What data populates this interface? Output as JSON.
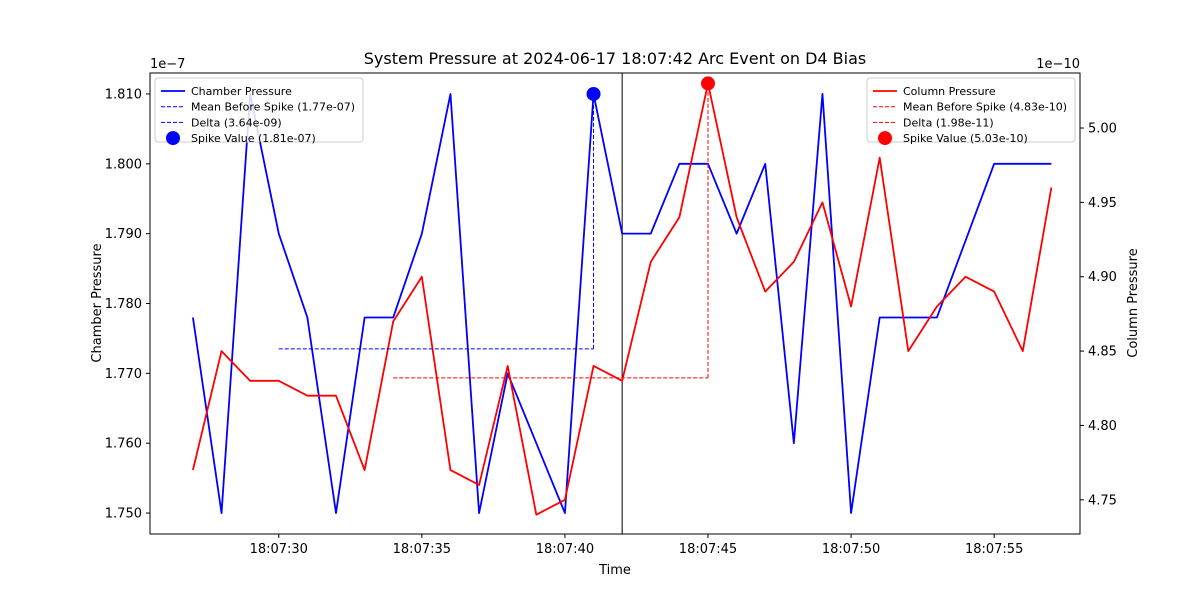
{
  "chart_data": {
    "type": "line",
    "title": "System Pressure at 2024-06-17 18:07:42 Arc Event on D4 Bias",
    "xlabel": "Time",
    "x_times": [
      "18:07:27",
      "18:07:28",
      "18:07:29",
      "18:07:30",
      "18:07:31",
      "18:07:32",
      "18:07:33",
      "18:07:34",
      "18:07:35",
      "18:07:36",
      "18:07:37",
      "18:07:38",
      "18:07:39",
      "18:07:40",
      "18:07:41",
      "18:07:42",
      "18:07:43",
      "18:07:44",
      "18:07:45",
      "18:07:46",
      "18:07:47",
      "18:07:48",
      "18:07:49",
      "18:07:50",
      "18:07:51",
      "18:07:52",
      "18:07:53",
      "18:07:54",
      "18:07:55",
      "18:07:56",
      "18:07:57"
    ],
    "xlim": [
      "18:07:25.5",
      "18:07:58"
    ],
    "x_ticks": [
      "18:07:30",
      "18:07:35",
      "18:07:40",
      "18:07:45",
      "18:07:50",
      "18:07:55"
    ],
    "event_time": "18:07:42",
    "left_axis": {
      "label": "Chamber Pressure",
      "offset_text": "1e−7",
      "ylim": [
        1.747,
        1.813
      ],
      "ticks": [
        "1.750",
        "1.760",
        "1.770",
        "1.780",
        "1.790",
        "1.800",
        "1.810"
      ],
      "tick_values": [
        1.75,
        1.76,
        1.77,
        1.78,
        1.79,
        1.8,
        1.81
      ]
    },
    "right_axis": {
      "label": "Column Pressure",
      "offset_text": "1e−10",
      "ylim": [
        4.727,
        5.037
      ],
      "ticks": [
        "4.75",
        "4.80",
        "4.85",
        "4.90",
        "4.95",
        "5.00"
      ],
      "tick_values": [
        4.75,
        4.8,
        4.85,
        4.9,
        4.95,
        5.0
      ]
    },
    "series": [
      {
        "name": "Chamber Pressure",
        "axis": "left",
        "color": "#0000ff",
        "x": [
          "18:07:27",
          "18:07:28",
          "18:07:29",
          "18:07:30",
          "18:07:31",
          "18:07:32",
          "18:07:33",
          "18:07:34",
          "18:07:35",
          "18:07:36",
          "18:07:37",
          "18:07:38",
          "18:07:39",
          "18:07:40",
          "18:07:41",
          "18:07:42",
          "18:07:43",
          "18:07:44",
          "18:07:45",
          "18:07:46",
          "18:07:47",
          "18:07:48",
          "18:07:49",
          "18:07:50",
          "18:07:51",
          "18:07:52",
          "18:07:53",
          "18:07:54",
          "18:07:55",
          "18:07:56",
          "18:07:57"
        ],
        "values": [
          1.778,
          1.75,
          1.81,
          1.79,
          1.778,
          1.75,
          1.778,
          1.778,
          1.79,
          1.81,
          1.75,
          1.77,
          1.76,
          1.75,
          1.81,
          1.79,
          1.79,
          1.8,
          1.8,
          1.79,
          1.8,
          1.76,
          1.81,
          1.75,
          1.778,
          1.778,
          1.778,
          1.789,
          1.8,
          1.8,
          1.8
        ]
      },
      {
        "name": "Column Pressure",
        "axis": "right",
        "color": "#ff0000",
        "x": [
          "18:07:27",
          "18:07:28",
          "18:07:29",
          "18:07:30",
          "18:07:31",
          "18:07:32",
          "18:07:33",
          "18:07:34",
          "18:07:35",
          "18:07:36",
          "18:07:37",
          "18:07:38",
          "18:07:39",
          "18:07:40",
          "18:07:41",
          "18:07:42",
          "18:07:43",
          "18:07:44",
          "18:07:45",
          "18:07:46",
          "18:07:47",
          "18:07:48",
          "18:07:49",
          "18:07:50",
          "18:07:51",
          "18:07:52",
          "18:07:53",
          "18:07:54",
          "18:07:55",
          "18:07:56",
          "18:07:57"
        ],
        "values": [
          4.77,
          4.85,
          4.83,
          4.83,
          4.82,
          4.82,
          4.77,
          4.87,
          4.9,
          4.77,
          4.76,
          4.84,
          4.74,
          4.75,
          4.84,
          4.83,
          4.91,
          4.94,
          5.03,
          4.94,
          4.89,
          4.91,
          4.95,
          4.88,
          4.98,
          4.85,
          4.88,
          4.9,
          4.89,
          4.85,
          4.96
        ]
      }
    ],
    "annotations": {
      "chamber": {
        "mean_line": {
          "from": "18:07:30",
          "to": "18:07:41",
          "value": 1.7735
        },
        "delta_line": {
          "x": "18:07:41",
          "from": 1.7735,
          "to": 1.81
        },
        "spike_point": {
          "x": "18:07:41",
          "value": 1.81
        }
      },
      "column": {
        "mean_line": {
          "from": "18:07:34",
          "to": "18:07:45",
          "value": 4.832
        },
        "delta_line": {
          "x": "18:07:45",
          "from": 4.832,
          "to": 5.03
        },
        "spike_point": {
          "x": "18:07:45",
          "value": 5.03
        }
      }
    },
    "legend_left": {
      "placement": "upper-left",
      "entries": [
        {
          "label": "Chamber Pressure",
          "style": "solid",
          "color": "#0000ff"
        },
        {
          "label": "Mean Before Spike (1.77e-07)",
          "style": "dashed",
          "color": "#0000ff"
        },
        {
          "label": "Delta (3.64e-09)",
          "style": "dashed",
          "color": "#0000ff"
        },
        {
          "label": "Spike Value (1.81e-07)",
          "style": "marker",
          "color": "#0000ff"
        }
      ]
    },
    "legend_right": {
      "placement": "upper-right",
      "entries": [
        {
          "label": "Column Pressure",
          "style": "solid",
          "color": "#ff0000"
        },
        {
          "label": "Mean Before Spike (4.83e-10)",
          "style": "dashed",
          "color": "#ff0000"
        },
        {
          "label": "Delta (1.98e-11)",
          "style": "dashed",
          "color": "#ff0000"
        },
        {
          "label": "Spike Value (5.03e-10)",
          "style": "marker",
          "color": "#ff0000"
        }
      ]
    },
    "grid": false
  }
}
